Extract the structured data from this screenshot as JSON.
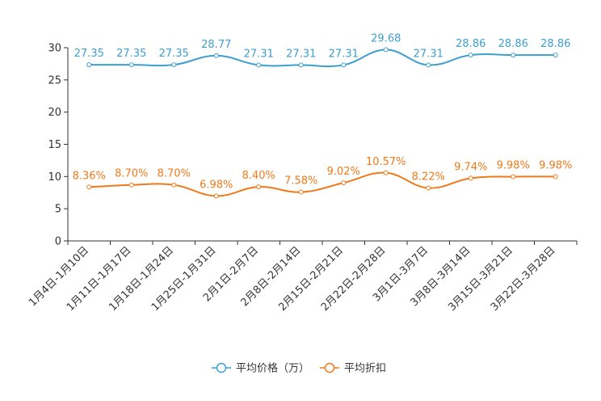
{
  "chart_data": {
    "type": "line",
    "title": "",
    "xlabel": "",
    "ylabel": "",
    "ylim": [
      0,
      30
    ],
    "yticks": [
      0,
      5,
      10,
      15,
      20,
      25,
      30
    ],
    "grid": false,
    "legend_position": "bottom",
    "categories": [
      "1月4日-1月10日",
      "1月11日-1月17日",
      "1月18日-1月24日",
      "1月25日-1月31日",
      "2月1日-2月7日",
      "2月8日-2月14日",
      "2月15日-2月21日",
      "2月22日-2月28日",
      "3月1日-3月7日",
      "3月8日-3月14日",
      "3月15日-3月21日",
      "3月22日-3月28日"
    ],
    "series": [
      {
        "name": "平均价格（万）",
        "color": "#3c9fd0",
        "values": [
          27.35,
          27.35,
          27.35,
          28.77,
          27.31,
          27.31,
          27.31,
          29.68,
          27.31,
          28.86,
          28.86,
          28.86
        ],
        "labels": [
          "27.35",
          "27.35",
          "27.35",
          "28.77",
          "27.31",
          "27.31",
          "27.31",
          "29.68",
          "27.31",
          "28.86",
          "28.86",
          "28.86"
        ]
      },
      {
        "name": "平均折扣",
        "color": "#f07a1a",
        "values": [
          8.36,
          8.7,
          8.7,
          6.98,
          8.4,
          7.58,
          9.02,
          10.57,
          8.22,
          9.74,
          9.98,
          9.98
        ],
        "labels": [
          "8.36%",
          "8.70%",
          "8.70%",
          "6.98%",
          "8.40%",
          "7.58%",
          "9.02%",
          "10.57%",
          "8.22%",
          "9.74%",
          "9.98%",
          "9.98%"
        ]
      }
    ]
  }
}
